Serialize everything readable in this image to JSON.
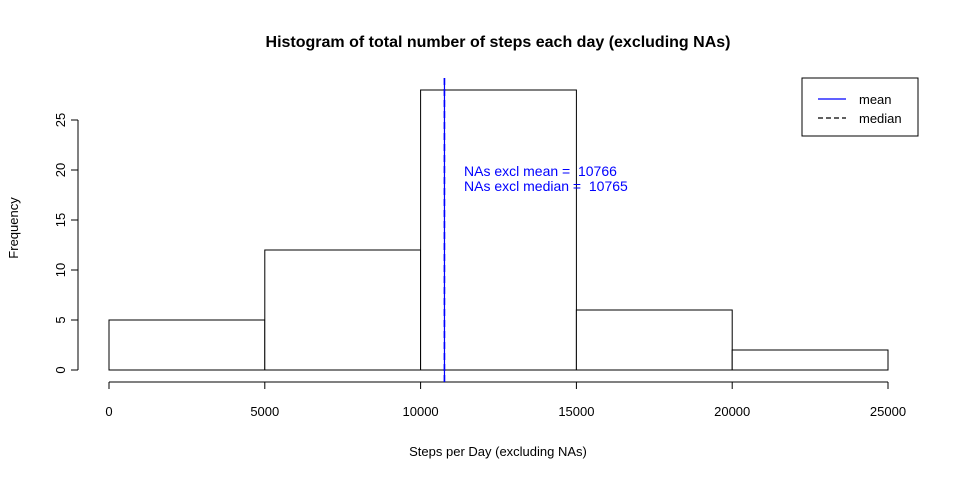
{
  "chart_data": {
    "type": "bar",
    "title": "Histogram of total number of steps each day (excluding NAs)",
    "xlabel": "Steps per Day (excluding NAs)",
    "ylabel": "Frequency",
    "bins": [
      {
        "from": 0,
        "to": 5000,
        "count": 5
      },
      {
        "from": 5000,
        "to": 10000,
        "count": 12
      },
      {
        "from": 10000,
        "to": 15000,
        "count": 28
      },
      {
        "from": 15000,
        "to": 20000,
        "count": 6
      },
      {
        "from": 20000,
        "to": 25000,
        "count": 2
      }
    ],
    "xlim": [
      0,
      25000
    ],
    "ylim": [
      0,
      28
    ],
    "x_ticks": [
      0,
      5000,
      10000,
      15000,
      20000,
      25000
    ],
    "y_ticks": [
      0,
      5,
      10,
      15,
      20,
      25
    ],
    "mean": 10766,
    "median": 10765,
    "line_color": "#0000ff",
    "bar_fill": "#ffffff",
    "bar_stroke": "#000000",
    "annotations": [
      "NAs excl mean =  10766",
      "NAs excl median =  10765"
    ],
    "legend": {
      "position": "top-right",
      "entries": [
        {
          "label": "mean",
          "style": "solid"
        },
        {
          "label": "median",
          "style": "dashed"
        }
      ]
    },
    "grid": false
  }
}
